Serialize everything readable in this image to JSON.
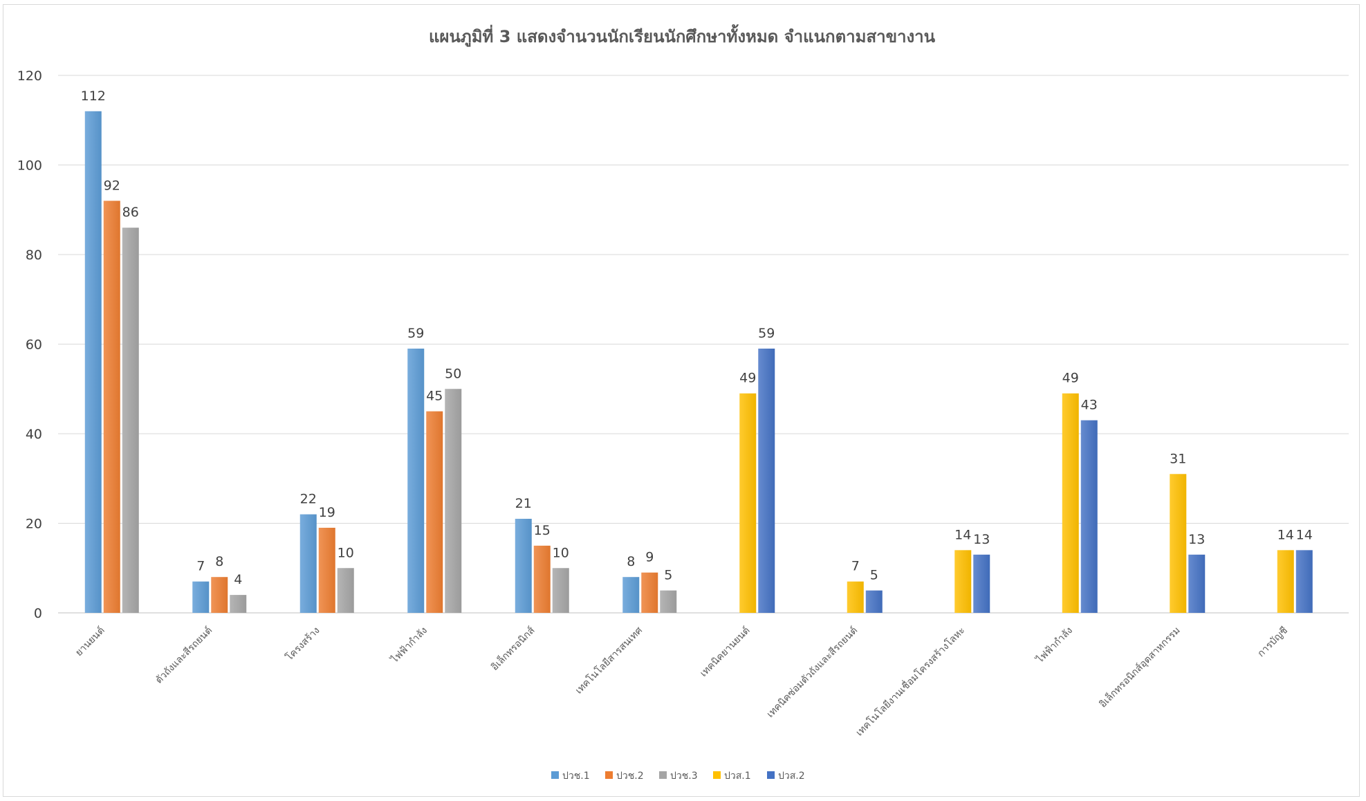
{
  "chart_data": {
    "type": "bar",
    "title": "แผนภูมิที่ 3 แสดงจำนวนนักเรียนนักศึกษาทั้งหมด จำแนกตามสาขางาน",
    "xlabel": "",
    "ylabel": "",
    "ylim": [
      0,
      120
    ],
    "yticks": [
      0,
      20,
      40,
      60,
      80,
      100,
      120
    ],
    "grid": true,
    "legend_position": "bottom",
    "categories": [
      "ยานยนต์",
      "ตัวถังและสีรถยนต์",
      "โครงสร้าง",
      "ไฟฟ้ากำลัง",
      "อิเล็กทรอนิกส์",
      "เทคโนโลยีสารสนเทศ",
      "เทคนิคยานยนต์",
      "เทคนิคซ่อมตัวถังและสีรถยนต์",
      "เทคโนโลยีงานเชื่อมโครงสร้างโลหะ",
      "ไฟฟ้ากำลัง",
      "อิเล็กทรอนิกส์อุตสาหกรรม",
      "การบัญชี"
    ],
    "series": [
      {
        "name": "ปวช.1",
        "color": "#5b9bd5",
        "values": [
          112,
          7,
          22,
          59,
          21,
          8,
          null,
          null,
          null,
          null,
          null,
          null
        ]
      },
      {
        "name": "ปวช.2",
        "color": "#ed7d31",
        "values": [
          92,
          8,
          19,
          45,
          15,
          9,
          null,
          null,
          null,
          null,
          null,
          null
        ]
      },
      {
        "name": "ปวช.3",
        "color": "#a5a5a5",
        "values": [
          86,
          4,
          10,
          50,
          10,
          5,
          null,
          null,
          null,
          null,
          null,
          null
        ]
      },
      {
        "name": "ปวส.1",
        "color": "#ffc000",
        "values": [
          null,
          null,
          null,
          null,
          null,
          null,
          49,
          7,
          14,
          49,
          31,
          14
        ]
      },
      {
        "name": "ปวส.2",
        "color": "#4472c4",
        "values": [
          null,
          null,
          null,
          null,
          null,
          null,
          59,
          5,
          13,
          43,
          13,
          14
        ]
      }
    ]
  }
}
